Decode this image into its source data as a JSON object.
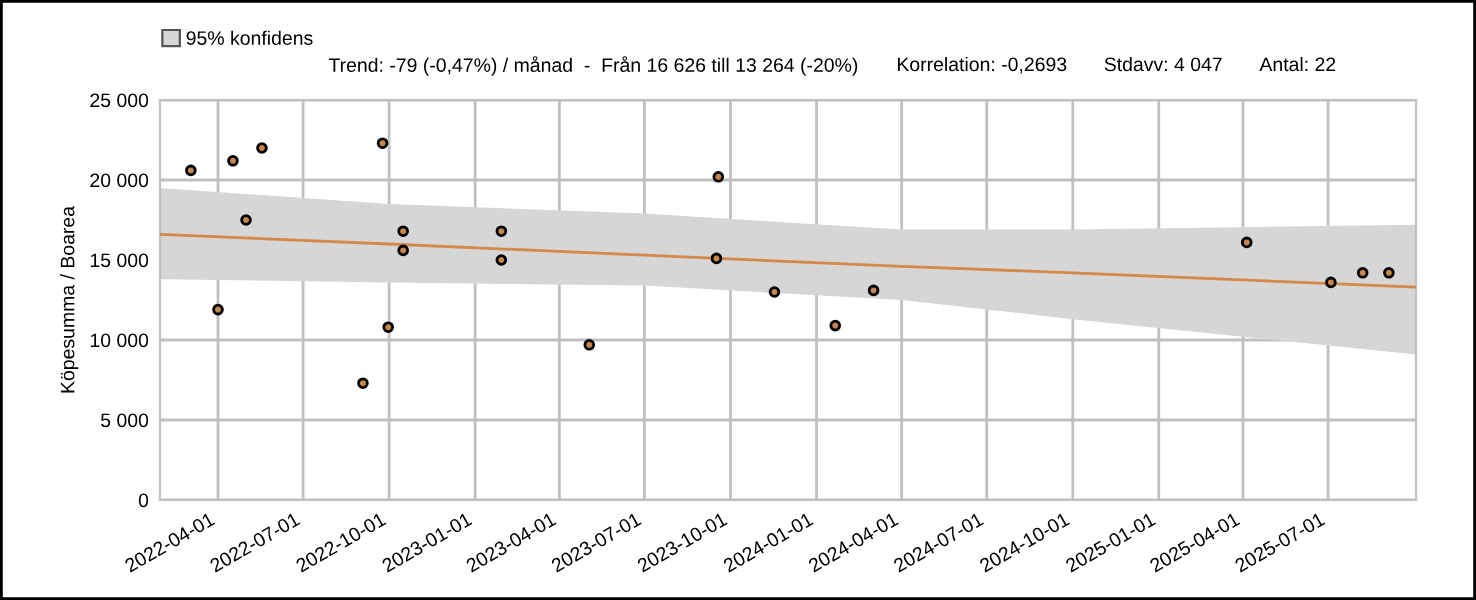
{
  "chart_data": {
    "type": "scatter",
    "annotations": [
      "Trend: -79 (-0,47%) / månad  -  Från 16 626 till 13 264 (-20%)",
      "Korrelation: -0,2693",
      "Stdavv: 4 047",
      "Antal: 22"
    ],
    "ylabel": "Köpesumma / Boarea",
    "series": [
      {
        "color": "#c8864a",
        "marker": "circle",
        "x": [
          "2022-03-03",
          "2022-04-01",
          "2022-04-17",
          "2022-05-01",
          "2022-05-18",
          "2022-09-03",
          "2022-09-24",
          "2022-09-30",
          "2022-10-16",
          "2022-10-16",
          "2023-01-29",
          "2023-01-29",
          "2023-05-03",
          "2023-09-18",
          "2023-09-16",
          "2023-11-17",
          "2024-01-21",
          "2024-03-02",
          "2025-04-05",
          "2025-07-04",
          "2025-08-07",
          "2025-09-04"
        ],
        "values": [
          20600,
          11900,
          21200,
          17500,
          22000,
          7300,
          22300,
          10800,
          16800,
          15600,
          16800,
          15000,
          9700,
          20200,
          15100,
          13000,
          10900,
          13100,
          16100,
          13600,
          14200,
          14200
        ]
      },
      {
        "type": "line",
        "name": "95% konfidens",
        "color": "#d4884a",
        "marker": "none",
        "x": [
          "2022-01-29",
          "2022-10-01",
          "2023-07-01",
          "2024-04-01",
          "2024-10-01",
          "2025-10-03"
        ],
        "values": [
          16600,
          16000,
          15300,
          14600,
          14200,
          13300
        ],
        "lower": [
          13800,
          13600,
          13400,
          12500,
          11300,
          9100
        ],
        "upper": [
          19500,
          18500,
          17900,
          16900,
          16900,
          17200
        ]
      }
    ],
    "xlim": [
      "2022-01-29",
      "2025-10-03"
    ],
    "xticks": [
      "2022-04-01",
      "2022-07-01",
      "2022-10-01",
      "2023-01-01",
      "2023-04-01",
      "2023-07-01",
      "2023-10-01",
      "2024-01-01",
      "2024-04-01",
      "2024-07-01",
      "2024-10-01",
      "2025-01-01",
      "2025-04-01",
      "2025-07-01"
    ],
    "ylim": [
      0,
      25000
    ],
    "yticks": [
      0,
      {
        "value": 5000,
        "label": "5 000"
      },
      {
        "value": 10000,
        "label": "10 000"
      },
      {
        "value": 15000,
        "label": "15 000"
      },
      {
        "value": 20000,
        "label": "20 000"
      },
      {
        "value": 25000,
        "label": "25 000"
      }
    ],
    "grid": true,
    "legend": "top left"
  }
}
